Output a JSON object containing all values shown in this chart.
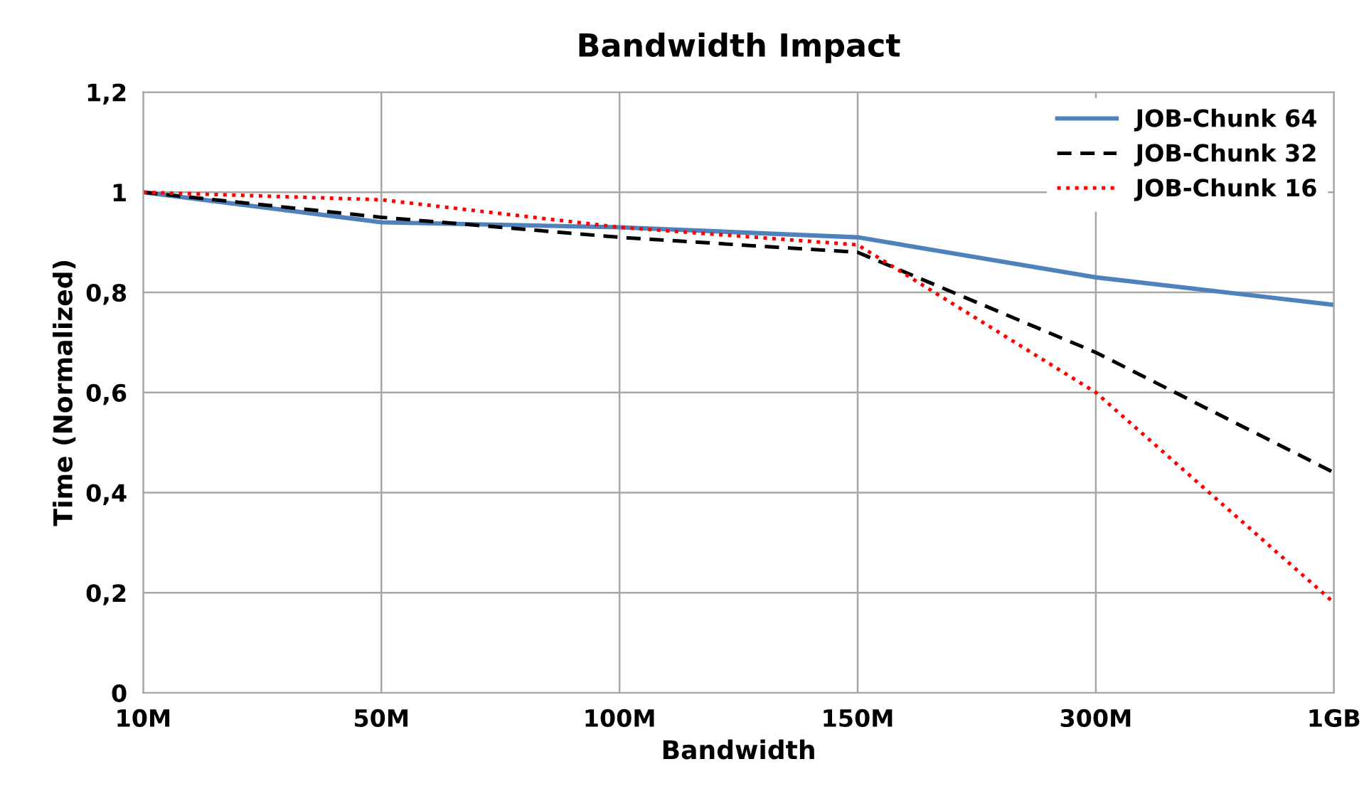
{
  "chart_data": {
    "type": "line",
    "title": "Bandwidth Impact",
    "xlabel": "Bandwidth",
    "ylabel": "Time (Normalized)",
    "categories": [
      "10M",
      "50M",
      "100M",
      "150M",
      "300M",
      "1GB"
    ],
    "series": [
      {
        "name": "JOB-Chunk 64",
        "color": "#4f81bd",
        "line_style": "solid",
        "values": [
          1.0,
          0.94,
          0.93,
          0.91,
          0.83,
          0.775
        ]
      },
      {
        "name": "JOB-Chunk 32",
        "color": "#000000",
        "line_style": "dashed",
        "values": [
          1.0,
          0.95,
          0.91,
          0.88,
          0.68,
          0.44
        ]
      },
      {
        "name": "JOB-Chunk 16",
        "color": "#ff0000",
        "line_style": "dotted",
        "values": [
          1.0,
          0.985,
          0.93,
          0.895,
          0.6,
          0.18
        ]
      }
    ],
    "ylim": [
      0,
      1.2
    ],
    "yticks": [
      0,
      {
        "value": 0.2,
        "label": "0,2"
      },
      {
        "value": 0.4,
        "label": "0,4"
      },
      {
        "value": 0.6,
        "label": "0,6"
      },
      {
        "value": 0.8,
        "label": "0,8"
      },
      1,
      {
        "value": 1.2,
        "label": "1,2"
      }
    ],
    "grid": true,
    "legend": "top right",
    "marker": "none"
  }
}
